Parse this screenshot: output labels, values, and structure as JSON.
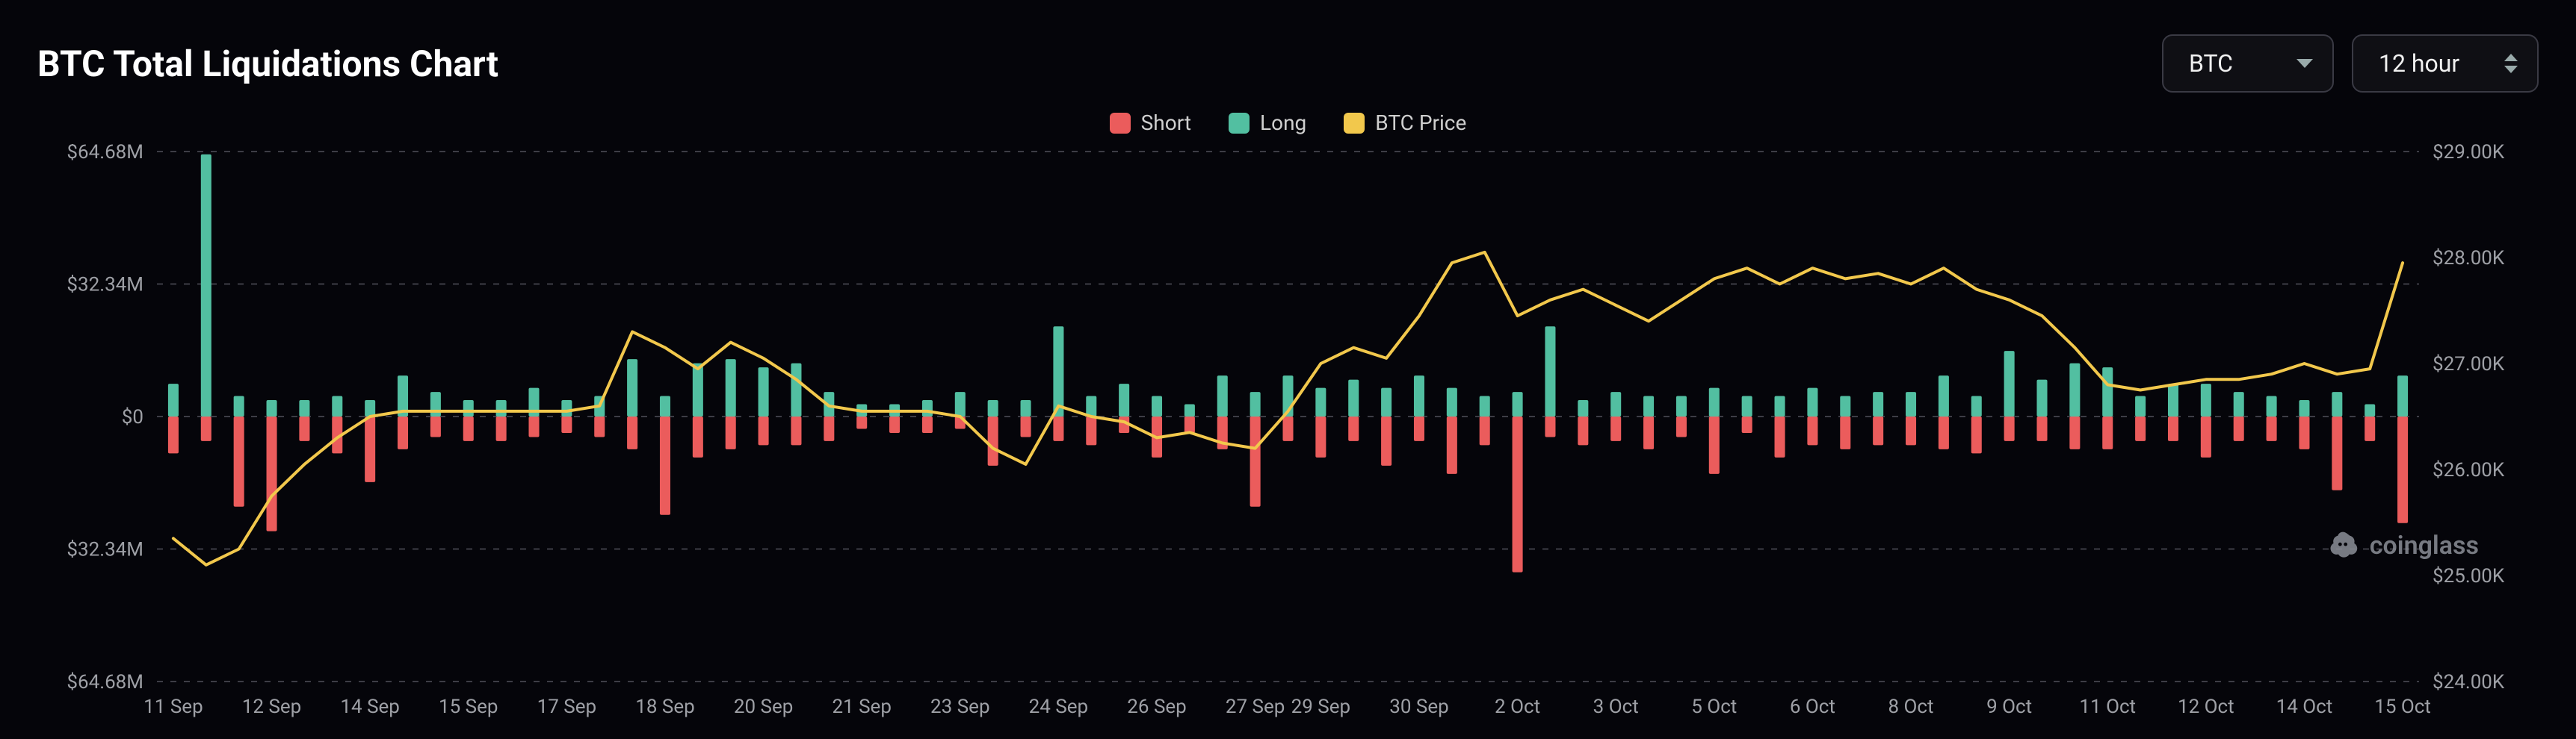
{
  "title": "BTC Total Liquidations Chart",
  "asset_select": {
    "value": "BTC"
  },
  "interval_select": {
    "value": "12 hour"
  },
  "legend": {
    "short": {
      "label": "Short",
      "color": "#eb5c5c"
    },
    "long": {
      "label": "Long",
      "color": "#52bfa1"
    },
    "price": {
      "label": "BTC Price",
      "color": "#f2c84c"
    }
  },
  "watermark": "coinglass",
  "colors": {
    "background": "#05050a",
    "grid": "#3d3d46",
    "axis_text": "#9ea0a6",
    "short_bar": "#eb5c5c",
    "long_bar": "#52bfa1",
    "price_line": "#f2c84c",
    "title_text": "#ffffff",
    "select_border": "#3a3a44"
  },
  "chart": {
    "type": "bar+line",
    "left_axis": {
      "label_ticks": [
        "$64.68M",
        "$32.34M",
        "$0",
        "$32.34M",
        "$64.68M"
      ],
      "min": -64.68,
      "max": 64.68,
      "unit": "M"
    },
    "right_axis": {
      "label_ticks": [
        "$29.00K",
        "$28.00K",
        "$27.00K",
        "$26.00K",
        "$25.00K",
        "$24.00K"
      ],
      "min": 24.0,
      "max": 29.0,
      "unit": "K"
    },
    "x_labels": [
      "11 Sep",
      "12 Sep",
      "14 Sep",
      "15 Sep",
      "17 Sep",
      "18 Sep",
      "20 Sep",
      "21 Sep",
      "23 Sep",
      "24 Sep",
      "26 Sep",
      "27 Sep",
      "29 Sep",
      "30 Sep",
      "2 Oct",
      "3 Oct",
      "5 Oct",
      "6 Oct",
      "8 Oct",
      "9 Oct",
      "11 Oct",
      "12 Oct",
      "14 Oct",
      "15 Oct"
    ],
    "bar_width": 0.32,
    "fontsize_axis": 26,
    "fontsize_title": 48,
    "fontsize_legend": 28,
    "series": [
      {
        "long": 8,
        "short": 9,
        "price": 25.35
      },
      {
        "long": 64,
        "short": 6,
        "price": 25.1
      },
      {
        "long": 5,
        "short": 22,
        "price": 25.25
      },
      {
        "long": 4,
        "short": 28,
        "price": 25.75
      },
      {
        "long": 4,
        "short": 6,
        "price": 26.05
      },
      {
        "long": 5,
        "short": 9,
        "price": 26.3
      },
      {
        "long": 4,
        "short": 16,
        "price": 26.5
      },
      {
        "long": 10,
        "short": 8,
        "price": 26.55
      },
      {
        "long": 6,
        "short": 5,
        "price": 26.55
      },
      {
        "long": 4,
        "short": 6,
        "price": 26.55
      },
      {
        "long": 4,
        "short": 6,
        "price": 26.55
      },
      {
        "long": 7,
        "short": 5,
        "price": 26.55
      },
      {
        "long": 4,
        "short": 4,
        "price": 26.55
      },
      {
        "long": 5,
        "short": 5,
        "price": 26.6
      },
      {
        "long": 14,
        "short": 8,
        "price": 27.3
      },
      {
        "long": 5,
        "short": 24,
        "price": 27.15
      },
      {
        "long": 13,
        "short": 10,
        "price": 26.95
      },
      {
        "long": 14,
        "short": 8,
        "price": 27.2
      },
      {
        "long": 12,
        "short": 7,
        "price": 27.05
      },
      {
        "long": 13,
        "short": 7,
        "price": 26.85
      },
      {
        "long": 6,
        "short": 6,
        "price": 26.6
      },
      {
        "long": 3,
        "short": 3,
        "price": 26.55
      },
      {
        "long": 3,
        "short": 4,
        "price": 26.55
      },
      {
        "long": 4,
        "short": 4,
        "price": 26.55
      },
      {
        "long": 6,
        "short": 3,
        "price": 26.5
      },
      {
        "long": 4,
        "short": 12,
        "price": 26.2
      },
      {
        "long": 4,
        "short": 5,
        "price": 26.05
      },
      {
        "long": 22,
        "short": 6,
        "price": 26.6
      },
      {
        "long": 5,
        "short": 7,
        "price": 26.5
      },
      {
        "long": 8,
        "short": 4,
        "price": 26.45
      },
      {
        "long": 5,
        "short": 10,
        "price": 26.3
      },
      {
        "long": 3,
        "short": 4,
        "price": 26.35
      },
      {
        "long": 10,
        "short": 8,
        "price": 26.25
      },
      {
        "long": 6,
        "short": 22,
        "price": 26.2
      },
      {
        "long": 10,
        "short": 6,
        "price": 26.55
      },
      {
        "long": 7,
        "short": 10,
        "price": 27.0
      },
      {
        "long": 9,
        "short": 6,
        "price": 27.15
      },
      {
        "long": 7,
        "short": 12,
        "price": 27.05
      },
      {
        "long": 10,
        "short": 6,
        "price": 27.45
      },
      {
        "long": 7,
        "short": 14,
        "price": 27.95
      },
      {
        "long": 5,
        "short": 7,
        "price": 28.05
      },
      {
        "long": 6,
        "short": 38,
        "price": 27.45
      },
      {
        "long": 22,
        "short": 5,
        "price": 27.6
      },
      {
        "long": 4,
        "short": 7,
        "price": 27.7
      },
      {
        "long": 6,
        "short": 6,
        "price": 27.55
      },
      {
        "long": 5,
        "short": 8,
        "price": 27.4
      },
      {
        "long": 5,
        "short": 5,
        "price": 27.6
      },
      {
        "long": 7,
        "short": 14,
        "price": 27.8
      },
      {
        "long": 5,
        "short": 4,
        "price": 27.9
      },
      {
        "long": 5,
        "short": 10,
        "price": 27.75
      },
      {
        "long": 7,
        "short": 7,
        "price": 27.9
      },
      {
        "long": 5,
        "short": 8,
        "price": 27.8
      },
      {
        "long": 6,
        "short": 7,
        "price": 27.85
      },
      {
        "long": 6,
        "short": 7,
        "price": 27.75
      },
      {
        "long": 10,
        "short": 8,
        "price": 27.9
      },
      {
        "long": 5,
        "short": 9,
        "price": 27.7
      },
      {
        "long": 16,
        "short": 6,
        "price": 27.6
      },
      {
        "long": 9,
        "short": 6,
        "price": 27.45
      },
      {
        "long": 13,
        "short": 8,
        "price": 27.15
      },
      {
        "long": 12,
        "short": 8,
        "price": 26.8
      },
      {
        "long": 5,
        "short": 6,
        "price": 26.75
      },
      {
        "long": 8,
        "short": 6,
        "price": 26.8
      },
      {
        "long": 8,
        "short": 10,
        "price": 26.85
      },
      {
        "long": 6,
        "short": 6,
        "price": 26.85
      },
      {
        "long": 5,
        "short": 6,
        "price": 26.9
      },
      {
        "long": 4,
        "short": 8,
        "price": 27.0
      },
      {
        "long": 6,
        "short": 18,
        "price": 26.9
      },
      {
        "long": 3,
        "short": 6,
        "price": 26.95
      },
      {
        "long": 10,
        "short": 26,
        "price": 27.95
      }
    ]
  }
}
